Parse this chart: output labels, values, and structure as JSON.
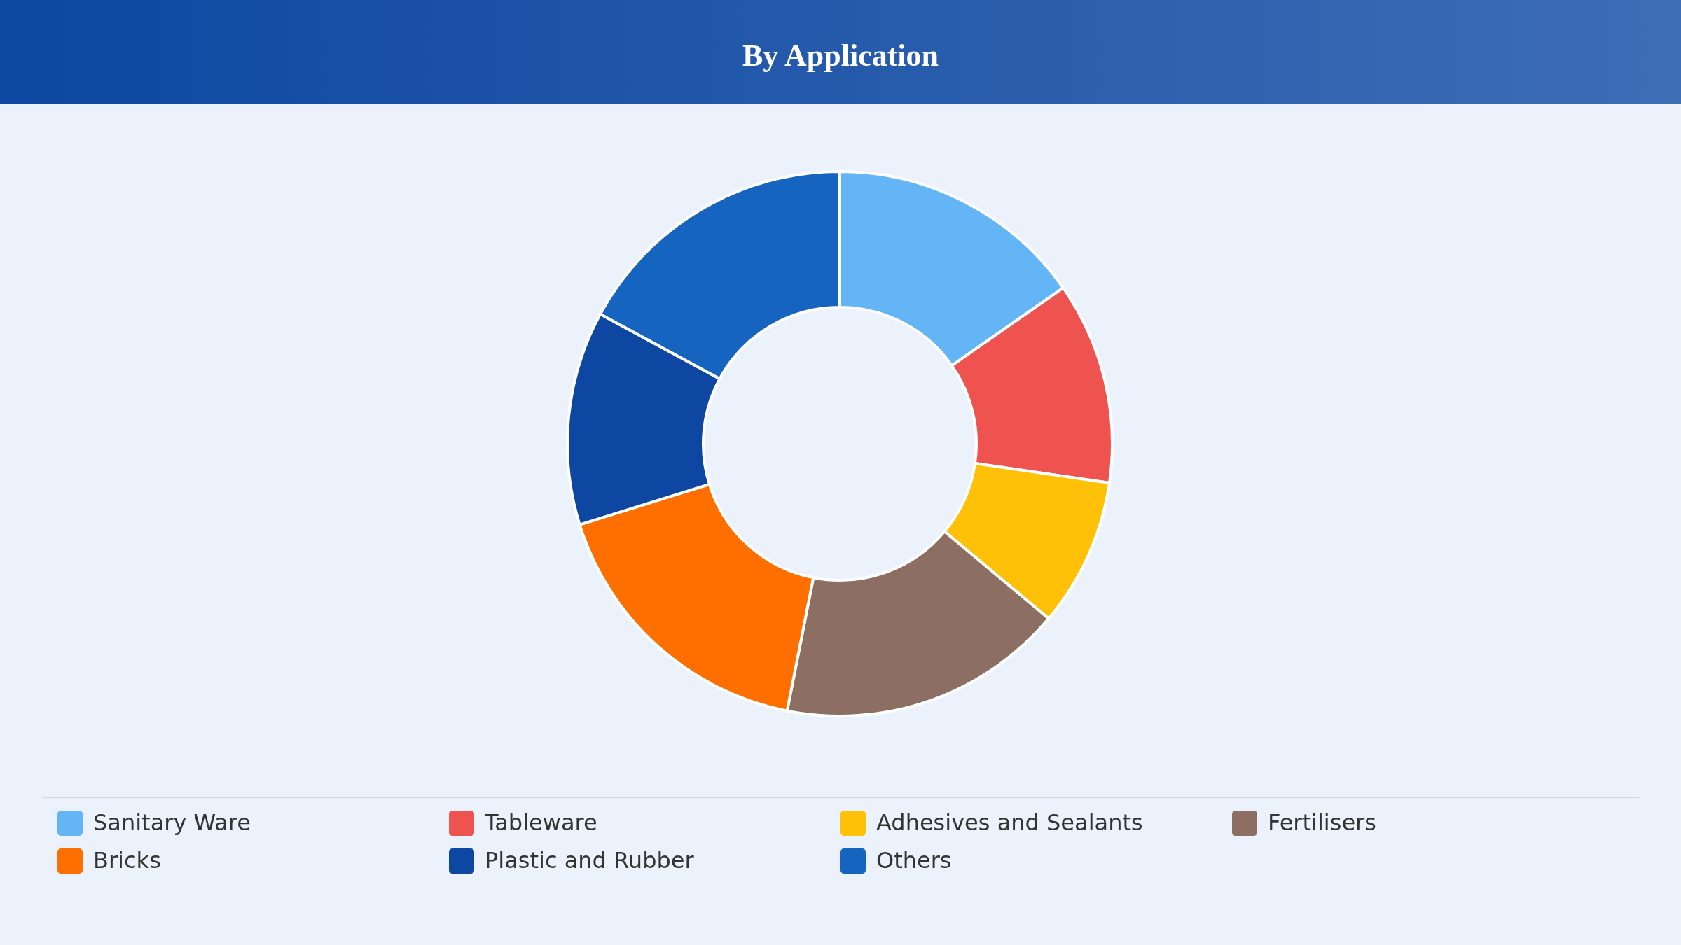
{
  "chart_data": {
    "type": "donut",
    "title": "By Application",
    "categories": [
      "Sanitary Ware",
      "Tableware",
      "Adhesives and Sealants",
      "Fertilisers",
      "Bricks",
      "Plastic and Rubber",
      "Others"
    ],
    "values": [
      15.3,
      12.0,
      8.8,
      17.0,
      17.1,
      12.7,
      17.1
    ],
    "colors": [
      "#64b5f6",
      "#ef5350",
      "#ffc107",
      "#8d6e63",
      "#ff6f00",
      "#0d47a1",
      "#1565c0"
    ],
    "legend": "bottom"
  }
}
